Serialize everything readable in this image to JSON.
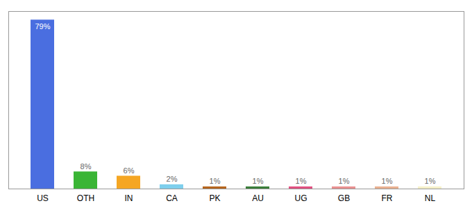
{
  "chart_data": {
    "type": "bar",
    "categories": [
      "US",
      "OTH",
      "IN",
      "CA",
      "PK",
      "AU",
      "UG",
      "GB",
      "FR",
      "NL"
    ],
    "values": [
      79,
      8,
      6,
      2,
      1,
      1,
      1,
      1,
      1,
      1
    ],
    "value_labels": [
      "79%",
      "8%",
      "6%",
      "2%",
      "1%",
      "1%",
      "1%",
      "1%",
      "1%",
      "1%"
    ],
    "colors": [
      "#4a6ee0",
      "#3ab535",
      "#f5a623",
      "#7ecfed",
      "#b5651d",
      "#3a7d3a",
      "#e05080",
      "#e89090",
      "#e8b090",
      "#f5f0c8"
    ],
    "ylim": [
      0,
      83
    ],
    "data_labels": true,
    "tick_labels": "x",
    "grid": false
  }
}
